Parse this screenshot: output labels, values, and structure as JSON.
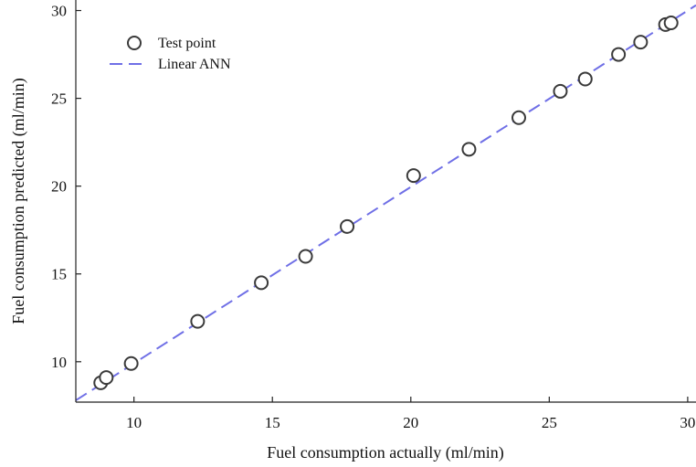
{
  "chart_data": {
    "type": "scatter",
    "title": "",
    "xlabel": "Fuel consumption actually (ml/min)",
    "ylabel": "Fuel consumption predicted (ml/min)",
    "xlim": [
      7.9,
      30.3
    ],
    "ylim": [
      7.7,
      30.6
    ],
    "xticks": [
      10,
      15,
      20,
      25,
      30
    ],
    "yticks": [
      10,
      15,
      20,
      25,
      30
    ],
    "grid": false,
    "legend_position": "top-left",
    "series": [
      {
        "name": "Test point",
        "kind": "scatter",
        "marker": "open-circle",
        "color": "#3a3a3a",
        "points": [
          {
            "x": 8.8,
            "y": 8.8
          },
          {
            "x": 9.0,
            "y": 9.1
          },
          {
            "x": 9.9,
            "y": 9.9
          },
          {
            "x": 12.3,
            "y": 12.3
          },
          {
            "x": 14.6,
            "y": 14.5
          },
          {
            "x": 16.2,
            "y": 16.0
          },
          {
            "x": 17.7,
            "y": 17.7
          },
          {
            "x": 20.1,
            "y": 20.6
          },
          {
            "x": 22.1,
            "y": 22.1
          },
          {
            "x": 23.9,
            "y": 23.9
          },
          {
            "x": 25.4,
            "y": 25.4
          },
          {
            "x": 26.3,
            "y": 26.1
          },
          {
            "x": 27.5,
            "y": 27.5
          },
          {
            "x": 28.3,
            "y": 28.2
          },
          {
            "x": 29.2,
            "y": 29.2
          },
          {
            "x": 29.4,
            "y": 29.3
          }
        ]
      },
      {
        "name": "Linear ANN",
        "kind": "line",
        "style": "dashed",
        "color": "#6f6fe6",
        "points": [
          {
            "x": 7.9,
            "y": 7.8
          },
          {
            "x": 30.3,
            "y": 30.3
          }
        ]
      }
    ]
  }
}
